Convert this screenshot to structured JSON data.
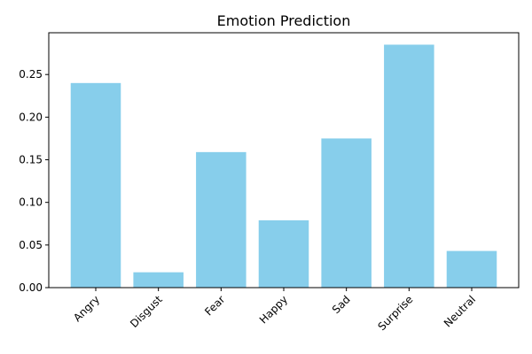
{
  "chart_data": {
    "type": "bar",
    "title": "Emotion Prediction",
    "xlabel": "",
    "ylabel": "",
    "categories": [
      "Angry",
      "Disgust",
      "Fear",
      "Happy",
      "Sad",
      "Surprise",
      "Neutral"
    ],
    "values": [
      0.24,
      0.018,
      0.159,
      0.079,
      0.175,
      0.285,
      0.043
    ],
    "ylim": [
      0,
      0.299
    ],
    "yticks": [
      "0.00",
      "0.05",
      "0.10",
      "0.15",
      "0.20",
      "0.25"
    ],
    "grid": false,
    "legend": "none",
    "bar_color": "#87ceeb"
  }
}
